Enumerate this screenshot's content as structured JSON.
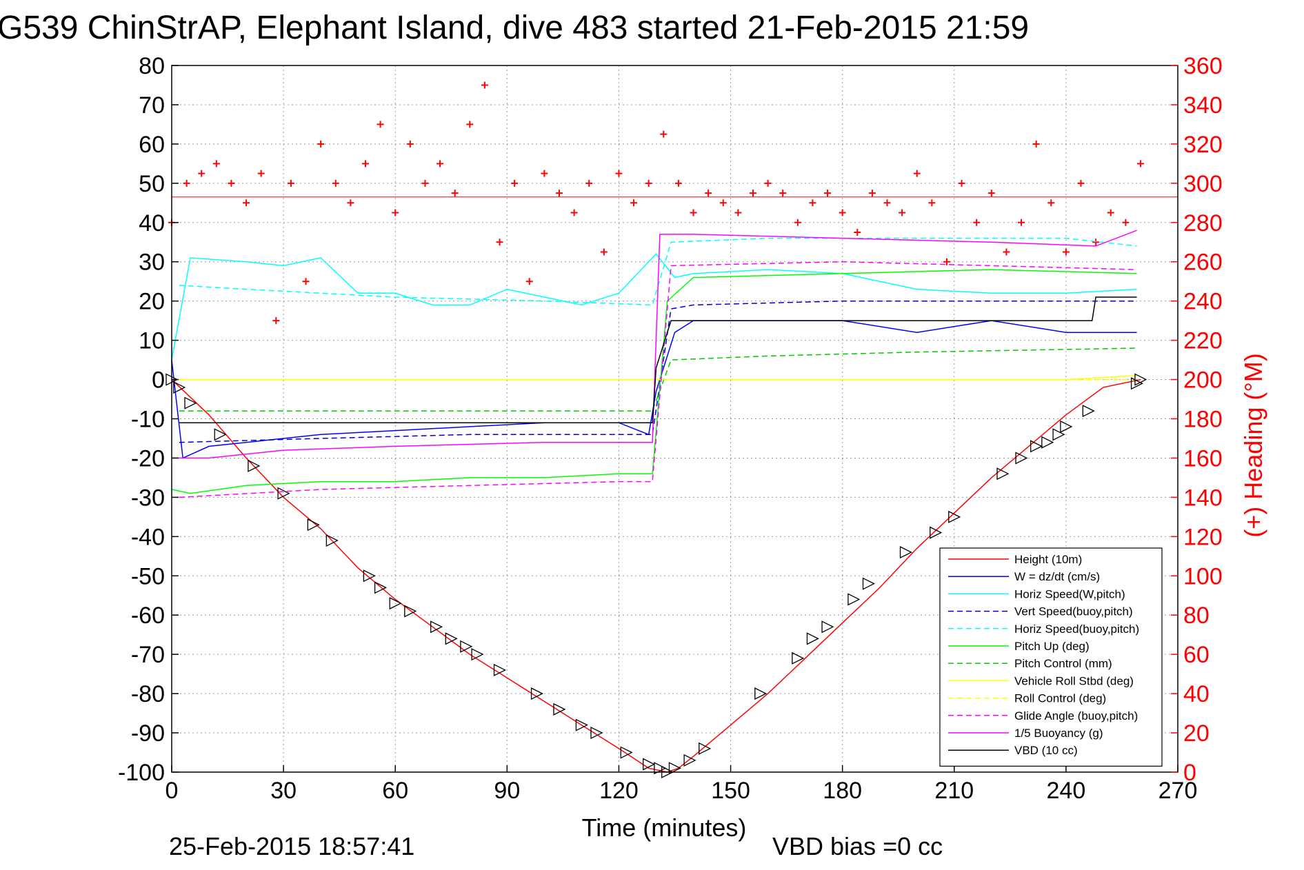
{
  "chart_data": {
    "type": "line",
    "title": "G539 ChinStrAP, Elephant Island, dive 483 started 21-Feb-2015 21:59",
    "xlabel": "Time (minutes)",
    "ylabel": "",
    "y2label": "(+) Heading (°M)",
    "xlim": [
      0,
      270
    ],
    "ylim": [
      -100,
      80
    ],
    "y2lim": [
      0,
      360
    ],
    "x_ticks": [
      0,
      30,
      60,
      90,
      120,
      150,
      180,
      210,
      240,
      270
    ],
    "y_ticks": [
      80,
      70,
      60,
      50,
      40,
      30,
      20,
      10,
      0,
      -10,
      -20,
      -30,
      -40,
      -50,
      -60,
      -70,
      -80,
      -90,
      -100
    ],
    "y2_ticks": [
      360,
      340,
      320,
      300,
      280,
      260,
      240,
      220,
      200,
      180,
      160,
      140,
      120,
      100,
      80,
      60,
      40,
      20,
      0
    ],
    "grid": true,
    "legend_position": "bottom-right",
    "footer_left": "25-Feb-2015 18:57:41",
    "footer_right": "VBD bias =0 cc",
    "series": [
      {
        "name": "Height (10m)",
        "color": "#ff0000",
        "style": "solid",
        "x": [
          0,
          10,
          20,
          30,
          40,
          50,
          60,
          70,
          80,
          90,
          100,
          110,
          120,
          128,
          133,
          136,
          140,
          150,
          160,
          170,
          180,
          190,
          200,
          210,
          220,
          230,
          240,
          250,
          260
        ],
        "y": [
          0,
          -9,
          -20,
          -30,
          -38,
          -48,
          -56,
          -63,
          -70,
          -76,
          -82,
          -88,
          -94,
          -99,
          -100,
          -99,
          -96,
          -88,
          -80,
          -71,
          -62,
          -53,
          -43,
          -34,
          -25,
          -17,
          -9,
          -2,
          0
        ]
      },
      {
        "name": "W = dz/dt (cm/s)",
        "color": "#0000ff",
        "style": "solid",
        "x": [
          0,
          3,
          10,
          20,
          40,
          60,
          80,
          100,
          120,
          128,
          130,
          135,
          140,
          160,
          180,
          200,
          220,
          240,
          259
        ],
        "y": [
          5,
          -20,
          -17,
          -16,
          -14,
          -13,
          -12,
          -11,
          -11,
          -14,
          -3,
          12,
          15,
          15,
          15,
          12,
          15,
          12,
          12
        ]
      },
      {
        "name": "Horiz Speed(W,pitch)",
        "color": "#00ffff",
        "style": "solid",
        "x": [
          0,
          5,
          20,
          30,
          40,
          50,
          60,
          70,
          80,
          90,
          100,
          110,
          120,
          130,
          135,
          140,
          160,
          180,
          200,
          220,
          240,
          259
        ],
        "y": [
          5,
          31,
          30,
          29,
          31,
          22,
          22,
          19,
          19,
          23,
          21,
          19,
          22,
          32,
          26,
          27,
          28,
          27,
          23,
          22,
          22,
          23
        ]
      },
      {
        "name": "Vert Speed(buoy,pitch)",
        "color": "#0000cc",
        "style": "dashed",
        "x": [
          2,
          40,
          80,
          120,
          129,
          134,
          140,
          180,
          220,
          259
        ],
        "y": [
          -16,
          -15,
          -14,
          -14,
          -14,
          18,
          19,
          20,
          20,
          20
        ]
      },
      {
        "name": "Horiz Speed(buoy,pitch)",
        "color": "#00ffff",
        "style": "dashed",
        "x": [
          2,
          20,
          60,
          100,
          129,
          134,
          160,
          200,
          240,
          259
        ],
        "y": [
          24,
          23,
          21,
          20,
          19,
          35,
          36,
          36,
          36,
          34
        ]
      },
      {
        "name": "Pitch Up (deg)",
        "color": "#00ff00",
        "style": "solid",
        "x": [
          0,
          5,
          20,
          40,
          60,
          80,
          100,
          120,
          129,
          133,
          140,
          180,
          220,
          259
        ],
        "y": [
          -28,
          -29,
          -27,
          -26,
          -26,
          -25,
          -25,
          -24,
          -24,
          20,
          26,
          27,
          28,
          27
        ]
      },
      {
        "name": "Pitch Control (mm)",
        "color": "#00cc00",
        "style": "dashed",
        "x": [
          2,
          40,
          80,
          129,
          134,
          160,
          200,
          259
        ],
        "y": [
          -8,
          -8,
          -8,
          -8,
          5,
          6,
          7,
          8
        ]
      },
      {
        "name": "Vehicle Roll Stbd (deg)",
        "color": "#ffff00",
        "style": "solid",
        "x": [
          0,
          20,
          40,
          60,
          80,
          100,
          120,
          140,
          160,
          180,
          200,
          220,
          240,
          259
        ],
        "y": [
          0,
          0,
          0,
          0,
          0,
          0,
          0,
          0,
          0,
          0,
          0,
          0,
          0,
          1
        ]
      },
      {
        "name": "Roll Control (deg)",
        "color": "#ffff00",
        "style": "dashed",
        "x": [
          0,
          259
        ],
        "y": [
          0,
          0
        ]
      },
      {
        "name": "Glide Angle (buoy,pitch)",
        "color": "#ff00ff",
        "style": "dashed",
        "x": [
          2,
          40,
          80,
          120,
          129,
          134,
          180,
          220,
          259
        ],
        "y": [
          -30,
          -28,
          -27,
          -26,
          -26,
          29,
          30,
          29,
          28
        ]
      },
      {
        "name": "1/5 Buoyancy (g)",
        "color": "#ff00ff",
        "style": "solid",
        "x": [
          0,
          10,
          30,
          60,
          100,
          129,
          131,
          140,
          180,
          220,
          248,
          259
        ],
        "y": [
          -20,
          -20,
          -18,
          -17,
          -16,
          -16,
          37,
          37,
          36,
          35,
          34,
          38
        ]
      },
      {
        "name": "VBD (10 cc)",
        "color": "#000000",
        "style": "solid",
        "x": [
          2,
          129,
          130,
          134,
          247,
          248,
          259
        ],
        "y": [
          -11,
          -11,
          3,
          15,
          15,
          21,
          21
        ]
      }
    ],
    "heading_series": {
      "name": "(+) Heading",
      "marker": "+",
      "color": "#ff0000",
      "axis": "right",
      "mean": 293,
      "x": [
        0,
        4,
        8,
        12,
        16,
        20,
        24,
        28,
        32,
        36,
        40,
        44,
        48,
        52,
        56,
        60,
        64,
        68,
        72,
        76,
        80,
        84,
        88,
        92,
        96,
        100,
        104,
        108,
        112,
        116,
        120,
        124,
        128,
        132,
        136,
        140,
        144,
        148,
        152,
        156,
        160,
        164,
        168,
        172,
        176,
        180,
        184,
        188,
        192,
        196,
        200,
        204,
        208,
        212,
        216,
        220,
        224,
        228,
        232,
        236,
        240,
        244,
        248,
        252,
        256,
        260
      ],
      "y": [
        280,
        300,
        305,
        310,
        300,
        290,
        305,
        230,
        300,
        250,
        320,
        300,
        290,
        310,
        330,
        285,
        320,
        300,
        310,
        295,
        330,
        350,
        270,
        300,
        250,
        305,
        295,
        285,
        300,
        265,
        305,
        290,
        300,
        325,
        300,
        285,
        295,
        290,
        285,
        295,
        300,
        295,
        280,
        290,
        295,
        285,
        275,
        295,
        290,
        285,
        305,
        290,
        260,
        300,
        280,
        295,
        265,
        280,
        320,
        290,
        265,
        300,
        270,
        285,
        280,
        310
      ]
    },
    "markers": {
      "name": "Height markers",
      "x": [
        0,
        2,
        5,
        13,
        22,
        30,
        38,
        43,
        53,
        56,
        60,
        64,
        71,
        75,
        79,
        82,
        88,
        98,
        104,
        110,
        114,
        122,
        128,
        131,
        133,
        135,
        139,
        143,
        158,
        168,
        172,
        176,
        183,
        187,
        197,
        205,
        210,
        223,
        228,
        232,
        235,
        238,
        240,
        246,
        259,
        260
      ],
      "y": [
        0,
        -2,
        -6,
        -14,
        -22,
        -29,
        -37,
        -41,
        -50,
        -53,
        -57,
        -59,
        -63,
        -66,
        -68,
        -70,
        -74,
        -80,
        -84,
        -88,
        -90,
        -95,
        -98,
        -99,
        -100,
        -99,
        -97,
        -94,
        -80,
        -71,
        -66,
        -63,
        -56,
        -52,
        -44,
        -39,
        -35,
        -24,
        -20,
        -17,
        -16,
        -14,
        -12,
        -8,
        -1,
        0
      ]
    }
  }
}
